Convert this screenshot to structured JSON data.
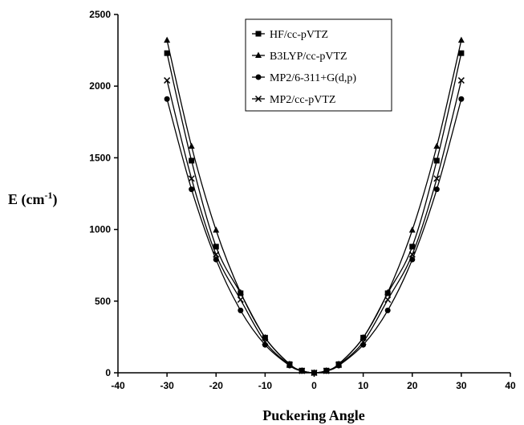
{
  "chart_data": {
    "type": "line",
    "title": "",
    "xlabel": "Puckering Angle",
    "ylabel": "E (cm",
    "ylabel_sup": "-1",
    "ylabel_suffix": ")",
    "xlim": [
      -40,
      40
    ],
    "ylim": [
      0,
      2500
    ],
    "x_ticks": [
      -40,
      -30,
      -20,
      -10,
      0,
      10,
      20,
      30,
      40
    ],
    "y_ticks": [
      0,
      500,
      1000,
      1500,
      2000,
      2500
    ],
    "x_tick_labels": [
      "-40",
      "-30",
      "-20",
      "-10",
      "0",
      "10",
      "20",
      "30",
      "40"
    ],
    "y_tick_labels": [
      "0",
      "500",
      "1000",
      "1500",
      "2000",
      "2500"
    ],
    "grid": false,
    "legend_position": "top-right",
    "x": [
      -30,
      -25,
      -20,
      -15,
      -10,
      -5,
      -2.5,
      0,
      2.5,
      5,
      10,
      15,
      20,
      25,
      30
    ],
    "series": [
      {
        "name": "HF/cc-pVTZ",
        "marker": "square",
        "values": [
          2230,
          1480,
          880,
          555,
          245,
          60,
          15,
          0,
          15,
          60,
          245,
          555,
          880,
          1480,
          2230
        ]
      },
      {
        "name": "B3LYP/cc-pVTZ",
        "marker": "triangle",
        "values": [
          2320,
          1580,
          995,
          560,
          245,
          60,
          15,
          0,
          15,
          60,
          245,
          560,
          995,
          1580,
          2320
        ]
      },
      {
        "name": "MP2/6-311+G(d,p)",
        "marker": "circle",
        "values": [
          1910,
          1280,
          790,
          435,
          195,
          50,
          12,
          0,
          12,
          50,
          195,
          435,
          790,
          1280,
          1910
        ]
      },
      {
        "name": "MP2/cc-pVTZ",
        "marker": "cross",
        "values": [
          2040,
          1355,
          825,
          510,
          215,
          55,
          13,
          0,
          13,
          55,
          215,
          510,
          825,
          1355,
          2040
        ]
      }
    ],
    "colors": {
      "line": "#000000",
      "background": "#ffffff"
    }
  }
}
